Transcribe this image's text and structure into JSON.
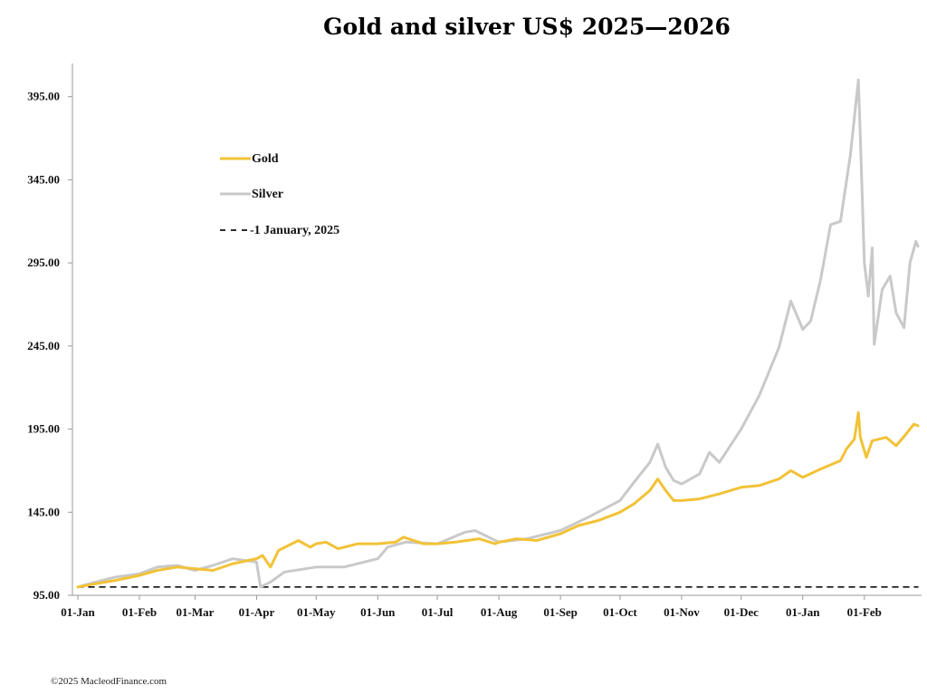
{
  "chart_data": {
    "type": "line",
    "title": "Gold and silver  US$ 2025—2026",
    "xlabel": "",
    "ylabel": "",
    "ylim": [
      95,
      415
    ],
    "yticks": [
      "95.00",
      "145.00",
      "195.00",
      "245.00",
      "295.00",
      "345.00",
      "395.00"
    ],
    "ytick_values": [
      95,
      145,
      195,
      245,
      295,
      345,
      395
    ],
    "xlim": [
      "2025-01-01",
      "2026-02-28"
    ],
    "xticks": [
      "01-Jan",
      "01-Feb",
      "01-Mar",
      "01-Apr",
      "01-May",
      "01-Jun",
      "01-Jul",
      "01-Aug",
      "01-Sep",
      "01-Oct",
      "01-Nov",
      "01-Dec",
      "01-Jan",
      "01-Feb"
    ],
    "xtick_dates": [
      "2025-01-01",
      "2025-02-01",
      "2025-03-01",
      "2025-04-01",
      "2025-05-01",
      "2025-06-01",
      "2025-07-01",
      "2025-08-01",
      "2025-09-01",
      "2025-10-01",
      "2025-11-01",
      "2025-12-01",
      "2026-01-01",
      "2026-02-01"
    ],
    "legend_position": "upper-left",
    "grid": false,
    "series": [
      {
        "name": "Gold",
        "color": "#f2c237",
        "style": "solid",
        "points": [
          [
            "2025-01-01",
            100
          ],
          [
            "2025-01-10",
            102
          ],
          [
            "2025-01-20",
            104
          ],
          [
            "2025-02-01",
            107
          ],
          [
            "2025-02-10",
            110
          ],
          [
            "2025-02-20",
            112
          ],
          [
            "2025-03-01",
            111
          ],
          [
            "2025-03-10",
            110
          ],
          [
            "2025-03-20",
            114
          ],
          [
            "2025-04-01",
            117
          ],
          [
            "2025-04-04",
            119
          ],
          [
            "2025-04-08",
            112
          ],
          [
            "2025-04-12",
            122
          ],
          [
            "2025-04-22",
            128
          ],
          [
            "2025-04-28",
            124
          ],
          [
            "2025-05-01",
            126
          ],
          [
            "2025-05-06",
            127
          ],
          [
            "2025-05-12",
            123
          ],
          [
            "2025-05-22",
            126
          ],
          [
            "2025-06-01",
            126
          ],
          [
            "2025-06-10",
            127
          ],
          [
            "2025-06-14",
            130
          ],
          [
            "2025-06-24",
            126
          ],
          [
            "2025-07-01",
            126
          ],
          [
            "2025-07-10",
            127
          ],
          [
            "2025-07-22",
            129
          ],
          [
            "2025-07-30",
            126
          ],
          [
            "2025-08-01",
            127
          ],
          [
            "2025-08-10",
            129
          ],
          [
            "2025-08-20",
            128
          ],
          [
            "2025-09-01",
            132
          ],
          [
            "2025-09-10",
            137
          ],
          [
            "2025-09-20",
            140
          ],
          [
            "2025-10-01",
            145
          ],
          [
            "2025-10-08",
            150
          ],
          [
            "2025-10-16",
            158
          ],
          [
            "2025-10-20",
            165
          ],
          [
            "2025-10-24",
            158
          ],
          [
            "2025-10-28",
            152
          ],
          [
            "2025-11-01",
            152
          ],
          [
            "2025-11-10",
            153
          ],
          [
            "2025-11-20",
            156
          ],
          [
            "2025-12-01",
            160
          ],
          [
            "2025-12-10",
            161
          ],
          [
            "2025-12-20",
            165
          ],
          [
            "2025-12-26",
            170
          ],
          [
            "2026-01-01",
            166
          ],
          [
            "2026-01-10",
            171
          ],
          [
            "2026-01-20",
            176
          ],
          [
            "2026-01-23",
            183
          ],
          [
            "2026-01-27",
            189
          ],
          [
            "2026-01-29",
            205
          ],
          [
            "2026-01-30",
            190
          ],
          [
            "2026-02-02",
            178
          ],
          [
            "2026-02-05",
            188
          ],
          [
            "2026-02-12",
            190
          ],
          [
            "2026-02-17",
            185
          ],
          [
            "2026-02-22",
            192
          ],
          [
            "2026-02-26",
            198
          ],
          [
            "2026-02-28",
            197
          ]
        ]
      },
      {
        "name": "Silver",
        "color": "#c9c9c9",
        "style": "solid",
        "points": [
          [
            "2025-01-01",
            100
          ],
          [
            "2025-01-10",
            103
          ],
          [
            "2025-01-20",
            106
          ],
          [
            "2025-02-01",
            108
          ],
          [
            "2025-02-10",
            112
          ],
          [
            "2025-02-20",
            113
          ],
          [
            "2025-03-01",
            110
          ],
          [
            "2025-03-10",
            113
          ],
          [
            "2025-03-20",
            117
          ],
          [
            "2025-04-01",
            115
          ],
          [
            "2025-04-03",
            100
          ],
          [
            "2025-04-08",
            103
          ],
          [
            "2025-04-15",
            109
          ],
          [
            "2025-05-01",
            112
          ],
          [
            "2025-05-15",
            112
          ],
          [
            "2025-06-01",
            117
          ],
          [
            "2025-06-06",
            124
          ],
          [
            "2025-06-15",
            127
          ],
          [
            "2025-07-01",
            126
          ],
          [
            "2025-07-15",
            133
          ],
          [
            "2025-07-20",
            134
          ],
          [
            "2025-08-01",
            127
          ],
          [
            "2025-08-15",
            129
          ],
          [
            "2025-09-01",
            134
          ],
          [
            "2025-09-15",
            142
          ],
          [
            "2025-10-01",
            152
          ],
          [
            "2025-10-08",
            163
          ],
          [
            "2025-10-16",
            175
          ],
          [
            "2025-10-20",
            186
          ],
          [
            "2025-10-24",
            172
          ],
          [
            "2025-10-28",
            164
          ],
          [
            "2025-11-01",
            162
          ],
          [
            "2025-11-10",
            168
          ],
          [
            "2025-11-15",
            181
          ],
          [
            "2025-11-20",
            175
          ],
          [
            "2025-12-01",
            195
          ],
          [
            "2025-12-10",
            215
          ],
          [
            "2025-12-20",
            244
          ],
          [
            "2025-12-26",
            272
          ],
          [
            "2026-01-01",
            255
          ],
          [
            "2026-01-05",
            260
          ],
          [
            "2026-01-10",
            285
          ],
          [
            "2026-01-15",
            318
          ],
          [
            "2026-01-20",
            320
          ],
          [
            "2026-01-25",
            360
          ],
          [
            "2026-01-29",
            405
          ],
          [
            "2026-01-30",
            370
          ],
          [
            "2026-02-01",
            295
          ],
          [
            "2026-02-03",
            275
          ],
          [
            "2026-02-05",
            304
          ],
          [
            "2026-02-06",
            246
          ],
          [
            "2026-02-10",
            279
          ],
          [
            "2026-02-14",
            287
          ],
          [
            "2026-02-17",
            265
          ],
          [
            "2026-02-21",
            256
          ],
          [
            "2026-02-24",
            295
          ],
          [
            "2026-02-27",
            308
          ],
          [
            "2026-02-28",
            305
          ]
        ]
      },
      {
        "name": "-1 January, 2025",
        "color": "#111111",
        "style": "dashed",
        "points": [
          [
            "2025-01-01",
            100
          ],
          [
            "2026-02-28",
            100
          ]
        ]
      }
    ],
    "footer": "©2025 MacleodFinance.com"
  }
}
